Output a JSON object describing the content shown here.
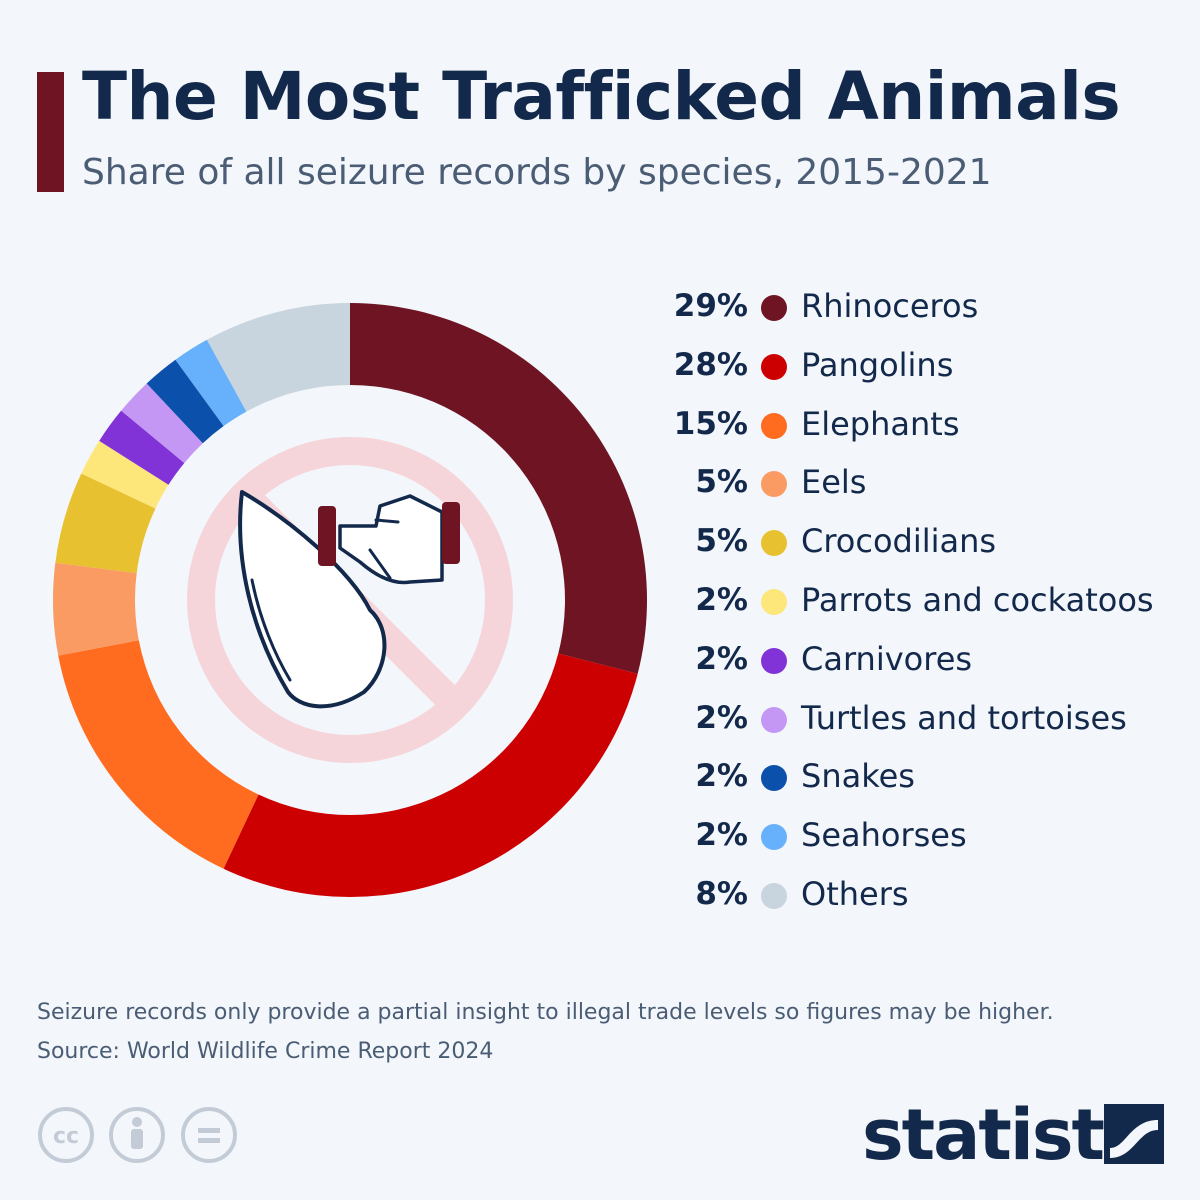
{
  "header": {
    "title": "The Most Trafficked Animals",
    "subtitle": "Share of all seizure records by species, 2015-2021"
  },
  "chart_data": {
    "type": "pie",
    "variant": "donut",
    "title": "The Most Trafficked Animals",
    "subtitle": "Share of all seizure records by species, 2015-2021",
    "unit": "%",
    "legend_position": "right",
    "categories": [
      "Rhinoceros",
      "Pangolins",
      "Elephants",
      "Eels",
      "Crocodilians",
      "Parrots and cockatoos",
      "Carnivores",
      "Turtles and tortoises",
      "Snakes",
      "Seahorses",
      "Others"
    ],
    "values": [
      29,
      28,
      15,
      5,
      5,
      2,
      2,
      2,
      2,
      2,
      8
    ],
    "value_labels": [
      "29%",
      "28%",
      "15%",
      "5%",
      "5%",
      "2%",
      "2%",
      "2%",
      "2%",
      "2%",
      "8%"
    ],
    "colors": [
      "#6e1423",
      "#cc0000",
      "#ff6b1f",
      "#f99b63",
      "#e8c131",
      "#fde77a",
      "#8133d8",
      "#c497f5",
      "#0b50aa",
      "#67b0fb",
      "#c8d4de"
    ],
    "center_icon": "no-trafficking-icon"
  },
  "footer": {
    "note": "Seizure records only provide a partial insight to illegal trade levels so figures may be higher.",
    "source": "Source: World Wildlife Crime Report 2024",
    "license_icons": [
      "creative-commons-icon",
      "attribution-icon",
      "no-derivatives-icon"
    ],
    "brand": "statista"
  },
  "colors": {
    "background": "#f3f6fa",
    "title": "#13294b",
    "accent": "#6e1423",
    "muted": "#4a5d75"
  }
}
